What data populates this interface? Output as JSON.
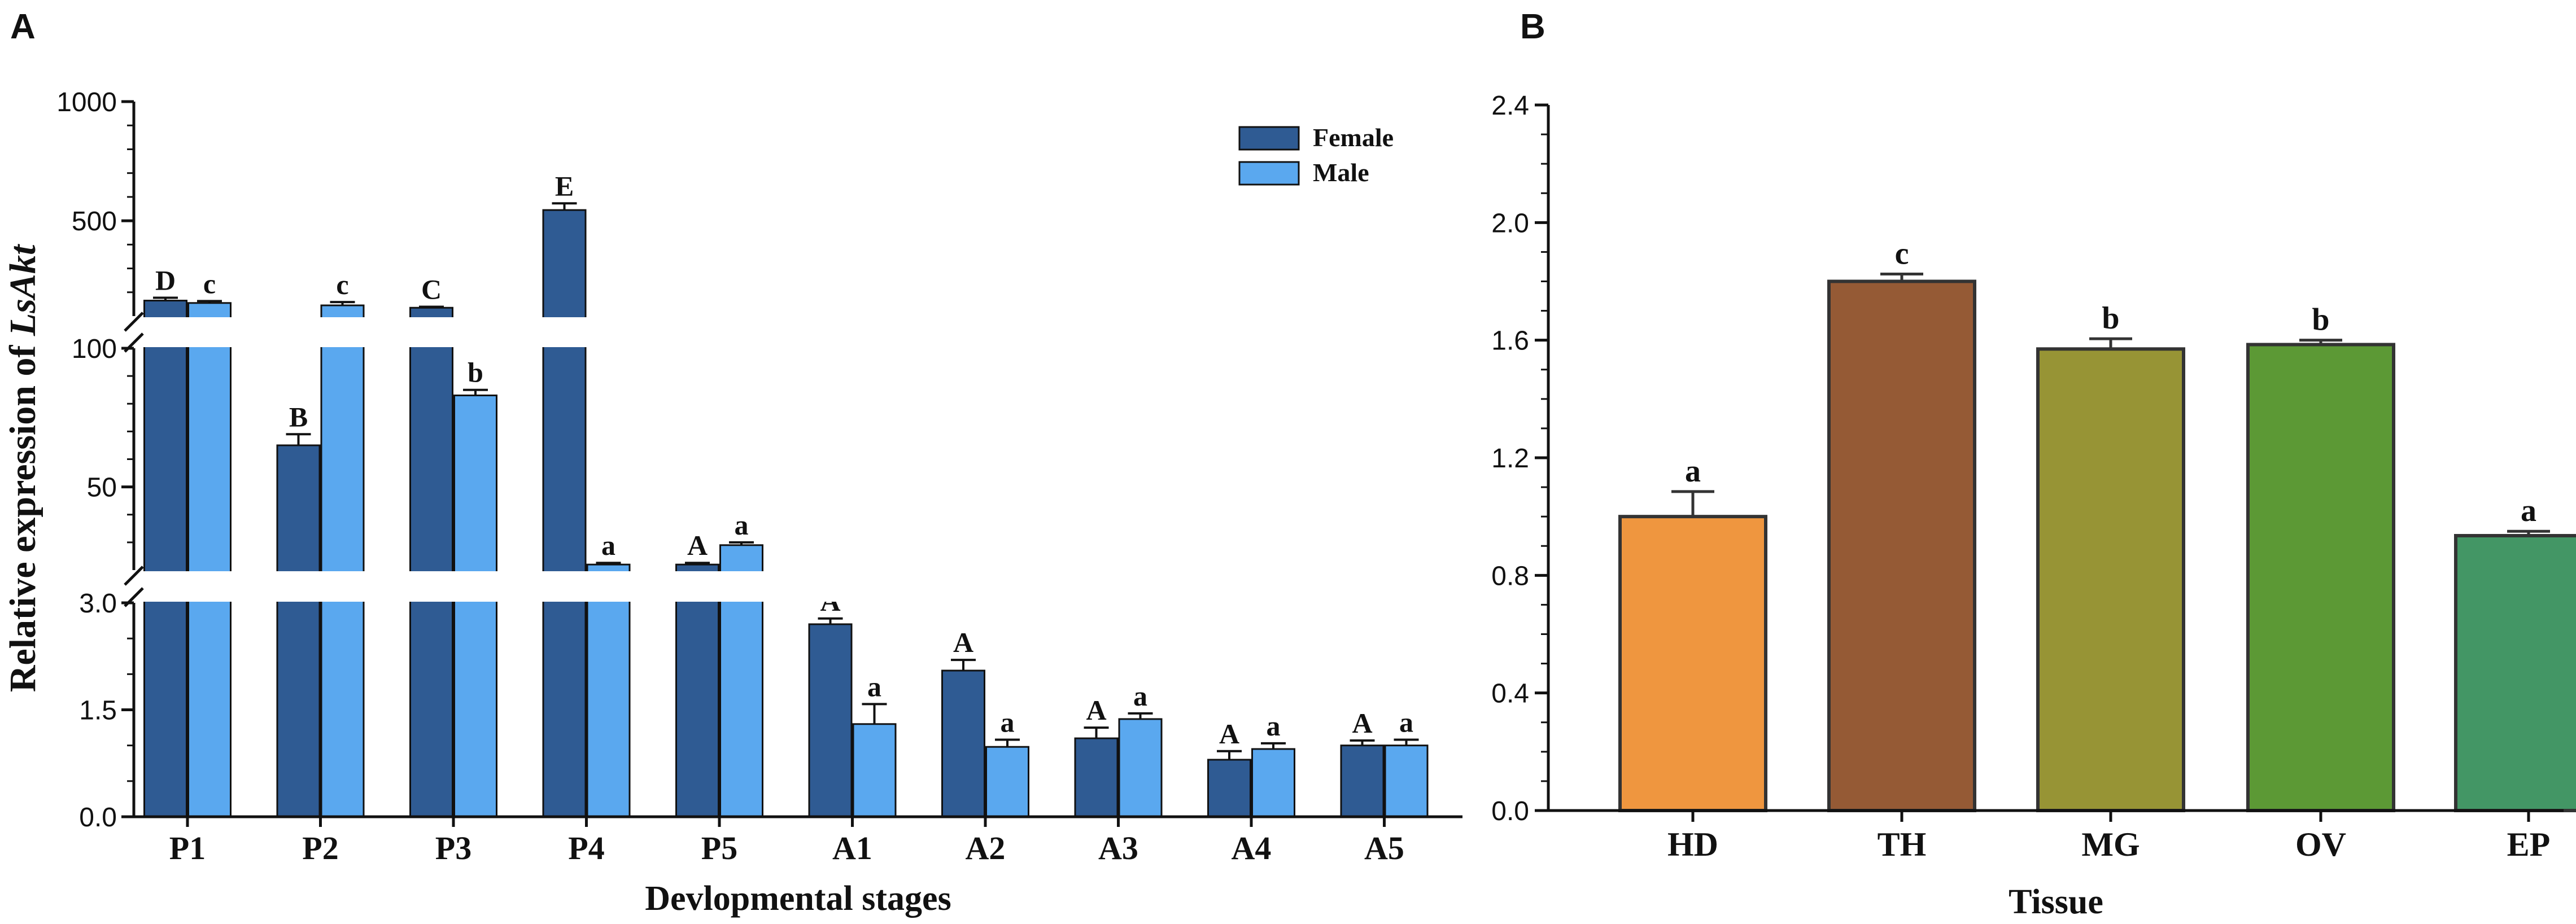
{
  "chart_data": [
    {
      "panel": "A",
      "type": "bar",
      "ylabel_prefix": "Relative expression of ",
      "ylabel_gene": "LsAkt",
      "xlabel": "Devlopmental stages",
      "categories": [
        "P1",
        "P2",
        "P3",
        "P4",
        "P5",
        "A1",
        "A2",
        "A3",
        "A4",
        "A5"
      ],
      "y_segments": [
        {
          "range": [
            0,
            3.0
          ],
          "ticks": [
            "0.0",
            "1.5",
            "3.0"
          ]
        },
        {
          "range": [
            20,
            100
          ],
          "ticks": [
            "50",
            "100"
          ]
        },
        {
          "range": [
            100,
            1000
          ],
          "ticks": [
            "500",
            "1000"
          ]
        }
      ],
      "legend": [
        "Female",
        "Male"
      ],
      "series": [
        {
          "name": "Female",
          "color": "#2f5b93",
          "values": [
            165,
            65,
            135,
            545,
            22,
            2.7,
            2.05,
            1.1,
            0.8,
            1.0
          ],
          "errors": [
            12,
            4,
            4,
            28,
            0.6,
            0.08,
            0.15,
            0.15,
            0.12,
            0.07
          ],
          "letters": [
            "D",
            "B",
            "C",
            "E",
            "A",
            "A",
            "A",
            "A",
            "A",
            "A"
          ]
        },
        {
          "name": "Male",
          "color": "#5aa8ef",
          "values": [
            155,
            145,
            83,
            22,
            29,
            1.3,
            0.98,
            1.37,
            0.95,
            1.0
          ],
          "errors": [
            8,
            14,
            2,
            0.6,
            1,
            0.28,
            0.1,
            0.08,
            0.08,
            0.08
          ],
          "letters": [
            "c",
            "c",
            "b",
            "a",
            "a",
            "a",
            "a",
            "a",
            "a",
            "a"
          ]
        }
      ]
    },
    {
      "panel": "B",
      "type": "bar",
      "xlabel": "Tissue",
      "ylabel": "",
      "categories": [
        "HD",
        "TH",
        "MG",
        "OV",
        "EP"
      ],
      "values": [
        1.0,
        1.8,
        1.57,
        1.585,
        0.935
      ],
      "errors": [
        0.085,
        0.025,
        0.035,
        0.015,
        0.015
      ],
      "letters": [
        "a",
        "c",
        "b",
        "b",
        "a"
      ],
      "colors": [
        "#ef963f",
        "#955a35",
        "#979435",
        "#5c9935",
        "#439665"
      ],
      "ylim": [
        0,
        2.4
      ],
      "ticks": [
        "0.0",
        "0.4",
        "0.8",
        "1.2",
        "1.6",
        "2.0",
        "2.4"
      ]
    }
  ]
}
